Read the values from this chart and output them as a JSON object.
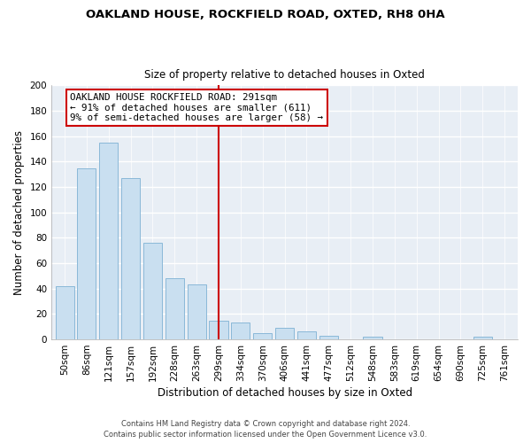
{
  "title1": "OAKLAND HOUSE, ROCKFIELD ROAD, OXTED, RH8 0HA",
  "title2": "Size of property relative to detached houses in Oxted",
  "xlabel": "Distribution of detached houses by size in Oxted",
  "ylabel": "Number of detached properties",
  "bar_labels": [
    "50sqm",
    "86sqm",
    "121sqm",
    "157sqm",
    "192sqm",
    "228sqm",
    "263sqm",
    "299sqm",
    "334sqm",
    "370sqm",
    "406sqm",
    "441sqm",
    "477sqm",
    "512sqm",
    "548sqm",
    "583sqm",
    "619sqm",
    "654sqm",
    "690sqm",
    "725sqm",
    "761sqm"
  ],
  "bar_values": [
    42,
    135,
    155,
    127,
    76,
    48,
    43,
    15,
    13,
    5,
    9,
    6,
    3,
    0,
    2,
    0,
    0,
    0,
    0,
    2,
    0
  ],
  "bar_color": "#c9dff0",
  "bar_edge_color": "#8ab8d8",
  "vline_x": 7,
  "vline_color": "#cc0000",
  "annotation_title": "OAKLAND HOUSE ROCKFIELD ROAD: 291sqm",
  "annotation_line1": "← 91% of detached houses are smaller (611)",
  "annotation_line2": "9% of semi-detached houses are larger (58) →",
  "annotation_box_color": "#ffffff",
  "annotation_box_edge": "#cc0000",
  "ylim": [
    0,
    200
  ],
  "yticks": [
    0,
    20,
    40,
    60,
    80,
    100,
    120,
    140,
    160,
    180,
    200
  ],
  "bg_color": "#ffffff",
  "plot_bg_color": "#e8eef5",
  "grid_color": "#ffffff",
  "footer1": "Contains HM Land Registry data © Crown copyright and database right 2024.",
  "footer2": "Contains public sector information licensed under the Open Government Licence v3.0."
}
